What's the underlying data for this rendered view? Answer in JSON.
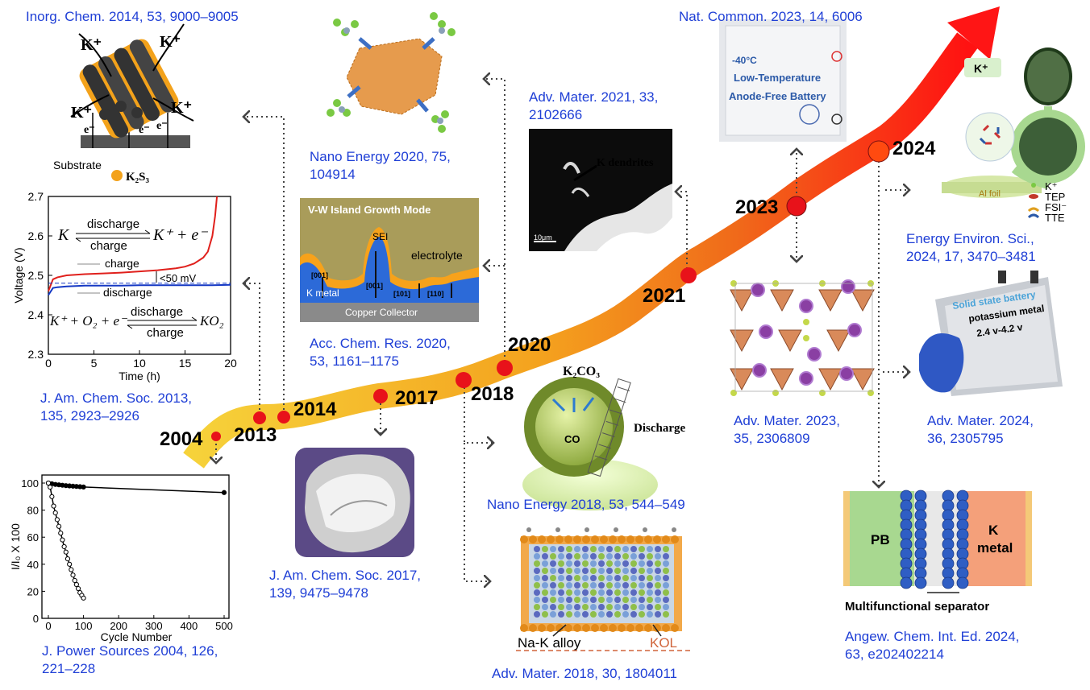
{
  "years": [
    "2004",
    "2013",
    "2014",
    "2017",
    "2018",
    "2020",
    "2021",
    "2023",
    "2024"
  ],
  "refs": {
    "inorg_2014": "Inorg. Chem. 2014, 53, 9000–9005",
    "jacs_2013": "J. Am. Chem. Soc. 2013,\n135, 2923–2926",
    "jps_2004": "J. Power Sources 2004, 126,\n221–228",
    "nano_2020": "Nano Energy 2020, 75,\n104914",
    "acr_2020": "Acc. Chem. Res. 2020,\n53, 1161–1175",
    "jacs_2017": "J. Am. Chem. Soc. 2017,\n139, 9475–9478",
    "nano_2018": "Nano Energy 2018, 53, 544–549",
    "advmater_2018": "Adv. Mater. 2018, 30, 1804011",
    "advmater_2021": "Adv. Mater. 2021, 33,\n2102666",
    "natcommon_2023": "Nat. Common. 2023, 14, 6006",
    "advmater_2023": "Adv. Mater. 2023,\n35, 2306809",
    "eesci_2024": "Energy Environ. Sci.,\n2024, 17, 3470–3481",
    "advmater_2024": "Adv. Mater. 2024,\n36, 2305795",
    "angew_2024": "Angew. Chem. Int. Ed. 2024,\n63, e202402214"
  },
  "k2s3_panel": {
    "k_plus": "K⁺",
    "e_minus": "e⁻",
    "substrate": "Substrate",
    "legend": "K₂S₃"
  },
  "voltage_chart": {
    "type": "line",
    "ylabel": "Voltage (V)",
    "xlabel": "Time (h)",
    "ylim": [
      2.3,
      2.7
    ],
    "xlim": [
      0,
      20
    ],
    "yticks": [
      "2.3",
      "2.4",
      "2.5",
      "2.6",
      "2.7"
    ],
    "xticks": [
      "0",
      "5",
      "10",
      "15",
      "20"
    ],
    "eq1_left": "K",
    "eq1_right": "K⁺ + e⁻",
    "eq_discharge": "discharge",
    "eq_charge": "charge",
    "eq2_left": "K⁺ + O₂ + e⁻",
    "eq2_right": "KO₂",
    "charge_label": "charge",
    "discharge_label": "discharge",
    "gap_label": "<50 mV",
    "series": [
      {
        "name": "charge",
        "color": "#e0201c",
        "x": [
          0,
          0.5,
          1,
          2,
          4,
          6,
          8,
          10,
          12,
          14,
          15,
          16,
          17,
          17.5,
          18,
          18.3,
          18.5
        ],
        "y": [
          2.46,
          2.49,
          2.495,
          2.5,
          2.503,
          2.505,
          2.507,
          2.51,
          2.513,
          2.518,
          2.522,
          2.53,
          2.545,
          2.56,
          2.6,
          2.65,
          2.7
        ]
      },
      {
        "name": "discharge",
        "color": "#1538c4",
        "x": [
          0,
          0.5,
          1,
          2,
          4,
          6,
          8,
          10,
          12,
          14,
          16,
          18,
          20
        ],
        "y": [
          2.45,
          2.468,
          2.47,
          2.472,
          2.474,
          2.474,
          2.474,
          2.475,
          2.475,
          2.475,
          2.475,
          2.475,
          2.476
        ]
      }
    ]
  },
  "cycle_chart": {
    "type": "line",
    "ylabel": "I/I₀ X 100",
    "xlabel": "Cycle Number",
    "xlim": [
      0,
      500
    ],
    "ylim": [
      0,
      100
    ],
    "xticks": [
      "0",
      "100",
      "200",
      "300",
      "400",
      "500"
    ],
    "yticks": [
      "0",
      "20",
      "40",
      "60",
      "80",
      "100"
    ],
    "series": [
      {
        "name": "filled",
        "x": [
          0,
          10,
          20,
          30,
          40,
          50,
          60,
          70,
          80,
          90,
          100,
          500
        ],
        "y": [
          100,
          99.5,
          99,
          98.7,
          98.4,
          98.1,
          97.9,
          97.7,
          97.5,
          97.3,
          97.1,
          93
        ]
      },
      {
        "name": "open",
        "x": [
          0,
          5,
          10,
          15,
          20,
          25,
          30,
          35,
          40,
          45,
          50,
          55,
          60,
          65,
          70,
          75,
          80,
          85,
          90,
          95,
          100
        ],
        "y": [
          100,
          97,
          90,
          83,
          78,
          73,
          68,
          63,
          58,
          53,
          49,
          44,
          40,
          36,
          32,
          28,
          25,
          22,
          19,
          17,
          15
        ]
      }
    ]
  },
  "vw_panel": {
    "title": "V-W Island Growth Mode",
    "sei": "SEI",
    "electrolyte": "electrolyte",
    "k_metal": "K metal",
    "collector": "Copper Collector",
    "f001a": "[001]",
    "f001b": "[001]",
    "f101": "[101]",
    "f110": "[110]"
  },
  "co_panel": {
    "k2co3": "K₂CO₃",
    "co": "CO",
    "discharge": "Discharge"
  },
  "nak_panel": {
    "alloy": "Na-K alloy",
    "kol": "KOL"
  },
  "dendrite_panel": {
    "label": "K dendrites",
    "scale": "10μm"
  },
  "battery_2023": {
    "temp": "-40°C",
    "line1": "Low-Temperature",
    "line2": "Anode-Free Battery"
  },
  "alfoil_panel": {
    "k_plus": "K⁺",
    "al_foil": "Al foil",
    "leg_k": "K⁺",
    "leg_tep": "TEP",
    "leg_fsi": "FSI⁻",
    "leg_tte": "TTE"
  },
  "solid_battery": {
    "line1": "Solid state battery",
    "line2": "potassium metal",
    "line3": "2.4 v-4.2 v"
  },
  "separator_panel": {
    "pb": "PB",
    "k": "K",
    "metal": "metal",
    "caption": "Multifunctional separator"
  },
  "colors": {
    "ref_blue": "#1f3fd6",
    "ribbon_start": "#f4c430",
    "ribbon_end": "#ff1a1a",
    "node_red": "#e8121a"
  }
}
